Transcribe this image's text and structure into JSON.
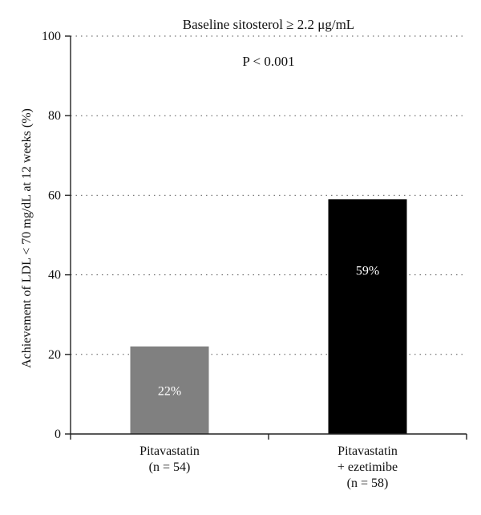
{
  "chart_data": {
    "type": "bar",
    "title": "Baseline sitosterol ≥ 2.2 μg/mL",
    "annotation": "P < 0.001",
    "ylabel": "Achievement of LDL < 70 mg/dL at 12 weeks (%)",
    "xlabel": "",
    "ylim": [
      0,
      100
    ],
    "yticks": [
      0,
      20,
      40,
      60,
      80,
      100
    ],
    "grid": true,
    "categories": [
      [
        "Pitavastatin",
        "(n = 54)"
      ],
      [
        "Pitavastatin",
        "+ ezetimibe",
        "(n = 58)"
      ]
    ],
    "values": [
      22,
      59
    ],
    "value_labels": [
      "22%",
      "59%"
    ],
    "colors": [
      "#808080",
      "#000000"
    ]
  }
}
